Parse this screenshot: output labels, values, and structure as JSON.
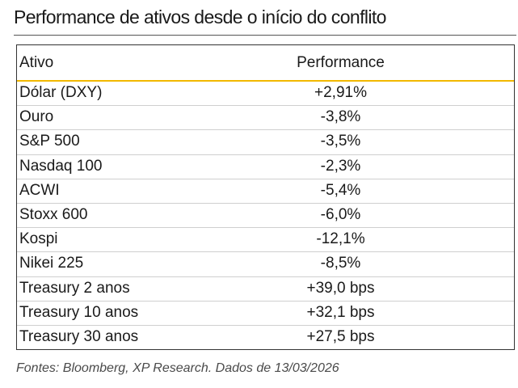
{
  "title": "Performance de ativos desde o início do conflito",
  "chart_data": {
    "type": "table",
    "columns": [
      "Ativo",
      "Performance"
    ],
    "rows": [
      {
        "asset": "Dólar (DXY)",
        "performance": "+2,91%"
      },
      {
        "asset": "Ouro",
        "performance": "-3,8%"
      },
      {
        "asset": "S&P 500",
        "performance": "-3,5%"
      },
      {
        "asset": "Nasdaq 100",
        "performance": "-2,3%"
      },
      {
        "asset": "ACWI",
        "performance": "-5,4%"
      },
      {
        "asset": "Stoxx 600",
        "performance": "-6,0%"
      },
      {
        "asset": "Kospi",
        "performance": "-12,1%"
      },
      {
        "asset": "Nikei 225",
        "performance": "-8,5%"
      },
      {
        "asset": "Treasury 2 anos",
        "performance": "+39,0 bps"
      },
      {
        "asset": "Treasury 10 anos",
        "performance": "+32,1 bps"
      },
      {
        "asset": "Treasury 30 anos",
        "performance": "+27,5 bps"
      }
    ],
    "colors": {
      "header_rule": "#f2b800",
      "text": "#1a1a1a",
      "grid": "#cfcfcf"
    }
  },
  "source": "Fontes: Bloomberg, XP Research. Dados de 13/03/2026"
}
